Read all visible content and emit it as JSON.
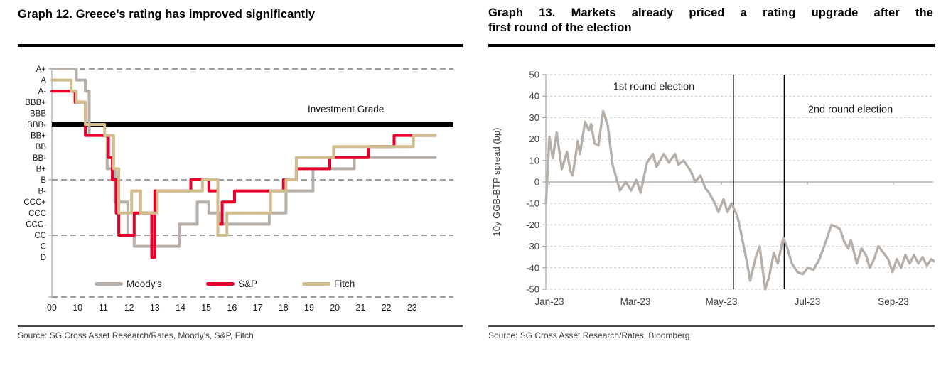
{
  "panels": {
    "left": {
      "title": "Graph 12. Greece’s rating has improved significantly",
      "source": "Source: SG Cross Asset Research/Rates, Moody’s, S&P, Fitch"
    },
    "right": {
      "title_lines": [
        "Graph 13. Markets already priced a rating upgrade after the",
        "first round of the election"
      ],
      "source": "Source: SG Cross Asset Research/Rates, Bloomberg"
    }
  },
  "chart_data": [
    {
      "type": "line",
      "title": "Graph 12. Greece’s rating has improved significantly",
      "y_scale_top_to_bottom": [
        "A+",
        "A",
        "A-",
        "BBB+",
        "BBB",
        "BBB-",
        "BB+",
        "BB",
        "BB-",
        "B+",
        "B",
        "B-",
        "CCC+",
        "CCC",
        "CCC-",
        "CC",
        "C",
        "D"
      ],
      "x_ticks": [
        "09",
        "10",
        "11",
        "12",
        "13",
        "14",
        "15",
        "16",
        "17",
        "18",
        "19",
        "20",
        "21",
        "22",
        "23"
      ],
      "x_range": [
        2009,
        2024.3
      ],
      "grid": "dashed horizontal at A+, B, CC and axis bottom",
      "investment_grade": {
        "label": "Investment Grade",
        "at_rating": "BBB-",
        "color": "#000000"
      },
      "legend_position": "bottom",
      "legend": [
        {
          "label": "Moody's",
          "color": "#b7b0aa"
        },
        {
          "label": "S&P",
          "color": "#e4002b"
        },
        {
          "label": "Fitch",
          "color": "#d2bd8e"
        }
      ],
      "series": [
        {
          "name": "Moody's",
          "color": "#b7b0aa",
          "steps": [
            [
              2009.0,
              "A+"
            ],
            [
              2009.95,
              "A"
            ],
            [
              2010.3,
              "A-"
            ],
            [
              2010.45,
              "BB+"
            ],
            [
              2011.15,
              "B+"
            ],
            [
              2011.45,
              "CCC+"
            ],
            [
              2011.95,
              "CC"
            ],
            [
              2012.2,
              "C"
            ],
            [
              2013.95,
              "CCC-"
            ],
            [
              2014.65,
              "CCC+"
            ],
            [
              2015.1,
              "CCC"
            ],
            [
              2015.5,
              "CCC-"
            ],
            [
              2017.45,
              "CCC"
            ],
            [
              2018.1,
              "B-"
            ],
            [
              2019.15,
              "B+"
            ],
            [
              2020.75,
              "BB-"
            ],
            [
              2023.9,
              "BB-"
            ]
          ]
        },
        {
          "name": "S&P",
          "color": "#e4002b",
          "steps": [
            [
              2009.0,
              "A-"
            ],
            [
              2009.9,
              "BBB+"
            ],
            [
              2010.3,
              "BB+"
            ],
            [
              2011.2,
              "BB-"
            ],
            [
              2011.35,
              "B"
            ],
            [
              2011.5,
              "CCC"
            ],
            [
              2011.6,
              "CC"
            ],
            [
              2012.2,
              "CCC"
            ],
            [
              2012.88,
              "D"
            ],
            [
              2013.0,
              "B-"
            ],
            [
              2014.4,
              "B"
            ],
            [
              2015.1,
              "B-"
            ],
            [
              2015.45,
              "CCC-"
            ],
            [
              2015.62,
              "CCC+"
            ],
            [
              2016.1,
              "B-"
            ],
            [
              2018.0,
              "B"
            ],
            [
              2018.5,
              "B+"
            ],
            [
              2019.8,
              "BB-"
            ],
            [
              2021.3,
              "BB"
            ],
            [
              2022.3,
              "BB+"
            ],
            [
              2023.9,
              "BB+"
            ]
          ]
        },
        {
          "name": "Fitch",
          "color": "#d2bd8e",
          "steps": [
            [
              2009.0,
              "A"
            ],
            [
              2009.75,
              "A-"
            ],
            [
              2009.95,
              "BBB+"
            ],
            [
              2010.3,
              "BBB-"
            ],
            [
              2011.05,
              "BB+"
            ],
            [
              2011.4,
              "B+"
            ],
            [
              2011.6,
              "CCC"
            ],
            [
              2012.1,
              "B-"
            ],
            [
              2012.45,
              "CCC"
            ],
            [
              2013.1,
              "B-"
            ],
            [
              2014.85,
              "B"
            ],
            [
              2015.45,
              "CC"
            ],
            [
              2015.8,
              "CCC"
            ],
            [
              2017.5,
              "B-"
            ],
            [
              2018.1,
              "B"
            ],
            [
              2018.5,
              "BB-"
            ],
            [
              2019.95,
              "BB"
            ],
            [
              2023.05,
              "BB+"
            ],
            [
              2023.9,
              "BB+"
            ]
          ]
        }
      ]
    },
    {
      "type": "line",
      "ylabel": "10y GGB-BTP spread (bp)",
      "ylim": [
        -50,
        50
      ],
      "y_ticks": [
        50,
        40,
        30,
        20,
        10,
        0,
        -10,
        -20,
        -30,
        -40,
        -50
      ],
      "x_ticks": [
        {
          "label": "Jan-23",
          "month": 0
        },
        {
          "label": "Mar-23",
          "month": 2
        },
        {
          "label": "May-23",
          "month": 4
        },
        {
          "label": "Jul-23",
          "month": 6
        },
        {
          "label": "Sep-23",
          "month": 8
        }
      ],
      "grid": "dashed horizontal each 10bp, solid axis at 0",
      "annotations": [
        {
          "label": "1st round election",
          "x_month": 2.43,
          "bp": 44.5
        },
        {
          "label": "2nd round election",
          "x_month": 7.0,
          "bp": 34.0
        }
      ],
      "event_lines": [
        {
          "name": "1st-round-election-line",
          "x_month": 4.28
        },
        {
          "name": "2nd-round-election-line",
          "x_month": 5.46
        }
      ],
      "series": [
        {
          "name": "10y GGB-BTP spread",
          "color": "#b7b0aa",
          "points": [
            [
              -0.08,
              -10
            ],
            [
              0.0,
              21
            ],
            [
              0.08,
              11
            ],
            [
              0.17,
              23
            ],
            [
              0.29,
              6
            ],
            [
              0.41,
              14
            ],
            [
              0.49,
              5
            ],
            [
              0.54,
              3
            ],
            [
              0.66,
              19
            ],
            [
              0.71,
              13
            ],
            [
              0.83,
              28
            ],
            [
              0.92,
              24
            ],
            [
              0.97,
              27
            ],
            [
              1.05,
              18
            ],
            [
              1.14,
              17
            ],
            [
              1.25,
              33
            ],
            [
              1.36,
              26
            ],
            [
              1.47,
              8
            ],
            [
              1.64,
              -4
            ],
            [
              1.78,
              0
            ],
            [
              1.9,
              -4
            ],
            [
              2.02,
              1
            ],
            [
              2.12,
              -5
            ],
            [
              2.27,
              9
            ],
            [
              2.41,
              13
            ],
            [
              2.49,
              7
            ],
            [
              2.66,
              13
            ],
            [
              2.78,
              9
            ],
            [
              2.92,
              13
            ],
            [
              3.0,
              8
            ],
            [
              3.12,
              10
            ],
            [
              3.29,
              5
            ],
            [
              3.39,
              0
            ],
            [
              3.51,
              3
            ],
            [
              3.63,
              -3
            ],
            [
              3.71,
              -5
            ],
            [
              3.85,
              -10
            ],
            [
              3.93,
              -14
            ],
            [
              4.05,
              -8
            ],
            [
              4.14,
              -14
            ],
            [
              4.24,
              -10
            ],
            [
              4.37,
              -16
            ],
            [
              4.42,
              -20
            ],
            [
              4.59,
              -37
            ],
            [
              4.67,
              -46
            ],
            [
              4.8,
              -35
            ],
            [
              4.89,
              -30
            ],
            [
              5.02,
              -50
            ],
            [
              5.11,
              -44
            ],
            [
              5.22,
              -33
            ],
            [
              5.31,
              -38
            ],
            [
              5.44,
              -26
            ],
            [
              5.52,
              -30
            ],
            [
              5.64,
              -38
            ],
            [
              5.77,
              -42
            ],
            [
              5.89,
              -43
            ],
            [
              6.01,
              -40
            ],
            [
              6.14,
              -41
            ],
            [
              6.28,
              -36
            ],
            [
              6.39,
              -30
            ],
            [
              6.56,
              -20
            ],
            [
              6.68,
              -21
            ],
            [
              6.76,
              -22
            ],
            [
              6.86,
              -28
            ],
            [
              6.95,
              -31
            ],
            [
              7.01,
              -27
            ],
            [
              7.15,
              -38
            ],
            [
              7.26,
              -31
            ],
            [
              7.36,
              -34
            ],
            [
              7.45,
              -40
            ],
            [
              7.55,
              -36
            ],
            [
              7.65,
              -30
            ],
            [
              7.77,
              -33
            ],
            [
              7.88,
              -36
            ],
            [
              7.98,
              -42
            ],
            [
              8.08,
              -36
            ],
            [
              8.18,
              -40
            ],
            [
              8.28,
              -34
            ],
            [
              8.38,
              -38
            ],
            [
              8.48,
              -34
            ],
            [
              8.58,
              -38
            ],
            [
              8.68,
              -35
            ],
            [
              8.78,
              -39
            ],
            [
              8.88,
              -36
            ],
            [
              8.95,
              -37
            ]
          ]
        }
      ]
    }
  ]
}
